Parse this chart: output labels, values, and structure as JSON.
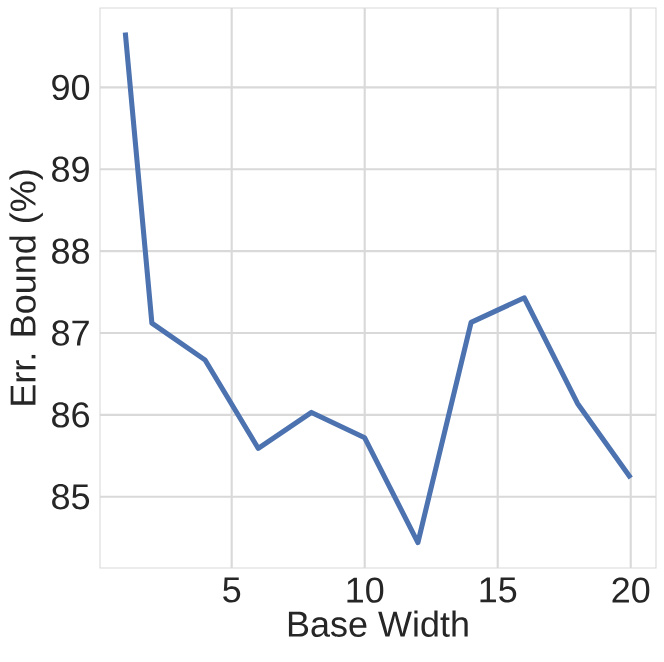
{
  "chart_data": {
    "type": "line",
    "xlabel": "Base Width",
    "ylabel": "Err. Bound (%)",
    "x": [
      1,
      2,
      4,
      6,
      8,
      10,
      12,
      14,
      16,
      18,
      20
    ],
    "series": [
      {
        "color": "#4c72b0",
        "values": [
          90.67,
          87.12,
          86.67,
          85.59,
          86.03,
          85.72,
          84.44,
          87.13,
          87.43,
          86.14,
          85.23
        ]
      }
    ],
    "xlim": [
      0.05,
      20.95
    ],
    "ylim": [
      84.13,
      90.97
    ],
    "xticks": [
      5,
      10,
      15,
      20
    ],
    "yticks": [
      85,
      86,
      87,
      88,
      89,
      90
    ],
    "grid": true,
    "marker": "none",
    "line_style": "solid"
  }
}
